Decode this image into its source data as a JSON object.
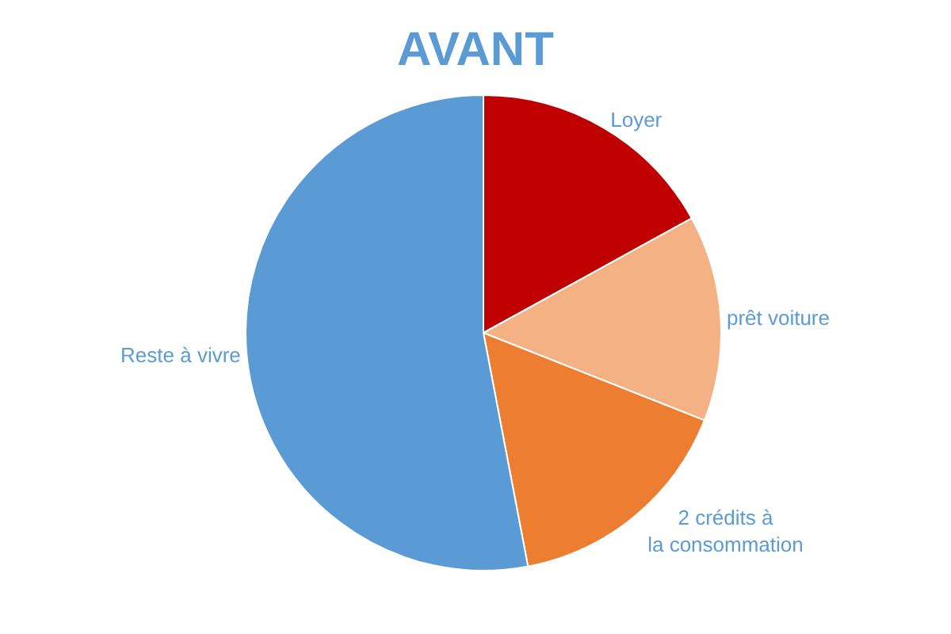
{
  "chart_data": {
    "type": "pie",
    "title": "AVANT",
    "categories": [
      "Loyer",
      "prêt voiture",
      "2 crédits à la consommation",
      "Reste à vivre"
    ],
    "values": [
      17,
      14,
      16,
      53
    ],
    "colors": [
      "#c00000",
      "#f4b183",
      "#ed7d31",
      "#5b9bd5"
    ],
    "legend": false
  }
}
